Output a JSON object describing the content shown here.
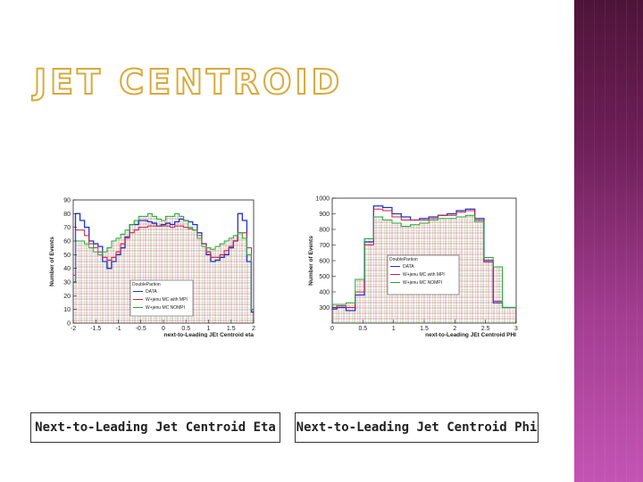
{
  "slide": {
    "title": "JET CENTROID",
    "captions": [
      "Next-to-Leading Jet Centroid Eta",
      "Next-to-Leading Jet Centroid Phi"
    ]
  },
  "colors": {
    "title_outline": "#d9a93a",
    "band_top": "#4e1438",
    "band_bottom": "#c454b4",
    "data": "#2233cc",
    "mpi": "#cc2244",
    "nompi": "#22aa33",
    "grid_green": "#5fbf5f",
    "grid_red": "#d9607a"
  },
  "chart_data": [
    {
      "type": "line",
      "xlabel": "next-to-Leading JEt Centroid eta",
      "ylabel": "Number of Events",
      "xlim": [
        -2,
        2
      ],
      "ylim": [
        0,
        90
      ],
      "xticks": [
        "-2",
        "-1.5",
        "-1",
        "-0.5",
        "0",
        "0.5",
        "1",
        "1.5",
        "2"
      ],
      "yticks": [
        "0",
        "10",
        "20",
        "30",
        "40",
        "50",
        "60",
        "70",
        "80",
        "90"
      ],
      "legend": {
        "title": "DoublePartion",
        "position": "bottom-right"
      },
      "x": [
        -2.0,
        -1.9,
        -1.8,
        -1.7,
        -1.6,
        -1.5,
        -1.4,
        -1.3,
        -1.2,
        -1.1,
        -1.0,
        -0.9,
        -0.8,
        -0.7,
        -0.6,
        -0.5,
        -0.4,
        -0.3,
        -0.2,
        -0.1,
        0.0,
        0.1,
        0.2,
        0.3,
        0.4,
        0.5,
        0.6,
        0.7,
        0.8,
        0.9,
        1.0,
        1.1,
        1.2,
        1.3,
        1.4,
        1.5,
        1.6,
        1.7,
        1.8,
        1.9,
        2.0
      ],
      "series": [
        {
          "name": "DATA",
          "values": [
            30,
            80,
            75,
            70,
            60,
            58,
            56,
            45,
            40,
            45,
            50,
            55,
            63,
            72,
            72,
            75,
            75,
            74,
            73,
            71,
            72,
            73,
            72,
            74,
            76,
            75,
            74,
            72,
            66,
            58,
            50,
            45,
            46,
            48,
            50,
            55,
            60,
            80,
            75,
            45,
            8
          ]
        },
        {
          "name": "W+jenu MC with MPI",
          "values": [
            35,
            68,
            68,
            64,
            58,
            55,
            52,
            48,
            46,
            48,
            52,
            58,
            62,
            66,
            68,
            70,
            70,
            71,
            71,
            71,
            71,
            71,
            70,
            71,
            71,
            70,
            69,
            68,
            64,
            58,
            52,
            48,
            48,
            50,
            53,
            56,
            60,
            66,
            66,
            55,
            10
          ]
        },
        {
          "name": "W+jenu MC NOMPI",
          "values": [
            30,
            60,
            60,
            58,
            55,
            52,
            50,
            52,
            55,
            60,
            62,
            65,
            68,
            72,
            75,
            78,
            78,
            80,
            78,
            76,
            75,
            78,
            78,
            80,
            78,
            75,
            70,
            68,
            62,
            56,
            55,
            54,
            56,
            58,
            60,
            62,
            64,
            66,
            62,
            50,
            10
          ]
        }
      ]
    },
    {
      "type": "line",
      "xlabel": "next-to-Leading JEt Centroid PHI",
      "ylabel": "Number of Events",
      "xlim": [
        0,
        3
      ],
      "ylim": [
        200,
        1000
      ],
      "xticks": [
        "0",
        "0.5",
        "1",
        "1.5",
        "2",
        "2.5",
        "3"
      ],
      "yticks": [
        "300",
        "400",
        "500",
        "600",
        "700",
        "800",
        "900",
        "1000"
      ],
      "legend": {
        "title": "DoublePartion",
        "position": "bottom-right"
      },
      "x": [
        0.0,
        0.15,
        0.3,
        0.45,
        0.6,
        0.75,
        0.9,
        1.05,
        1.2,
        1.35,
        1.5,
        1.65,
        1.8,
        1.95,
        2.1,
        2.25,
        2.4,
        2.55,
        2.7,
        2.85,
        3.0
      ],
      "series": [
        {
          "name": "DATA",
          "values": [
            290,
            300,
            280,
            380,
            720,
            950,
            940,
            900,
            880,
            860,
            870,
            880,
            890,
            900,
            920,
            930,
            870,
            600,
            330,
            300,
            300
          ]
        },
        {
          "name": "W+jenu MC with MPI",
          "values": [
            300,
            310,
            300,
            400,
            700,
            930,
            920,
            880,
            860,
            860,
            860,
            870,
            890,
            890,
            910,
            920,
            860,
            590,
            340,
            300,
            300
          ]
        },
        {
          "name": "W+jenu MC NOMPI",
          "values": [
            320,
            320,
            330,
            480,
            740,
            880,
            860,
            840,
            820,
            830,
            840,
            860,
            870,
            870,
            880,
            890,
            850,
            620,
            560,
            300,
            300
          ]
        }
      ]
    }
  ]
}
